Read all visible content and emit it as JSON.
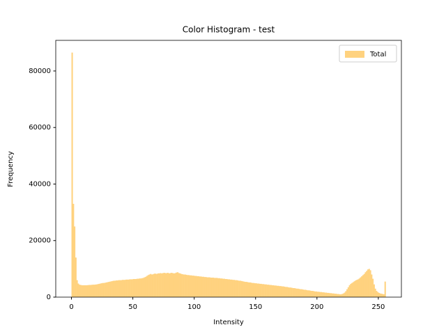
{
  "chart_data": {
    "type": "histogram",
    "title": "Color Histogram - test",
    "x_label": "Intensity",
    "y_label": "Frequency",
    "bins": [
      0,
      1,
      2,
      3,
      4,
      5,
      6,
      7,
      8,
      9,
      10,
      11,
      12,
      13,
      14,
      15,
      16,
      17,
      18,
      19,
      20,
      21,
      22,
      23,
      24,
      25,
      26,
      27,
      28,
      29,
      30,
      31,
      32,
      33,
      34,
      35,
      36,
      37,
      38,
      39,
      40,
      41,
      42,
      43,
      44,
      45,
      46,
      47,
      48,
      49,
      50,
      51,
      52,
      53,
      54,
      55,
      56,
      57,
      58,
      59,
      60,
      61,
      62,
      63,
      64,
      65,
      66,
      67,
      68,
      69,
      70,
      71,
      72,
      73,
      74,
      75,
      76,
      77,
      78,
      79,
      80,
      81,
      82,
      83,
      84,
      85,
      86,
      87,
      88,
      89,
      90,
      91,
      92,
      93,
      94,
      95,
      96,
      97,
      98,
      99,
      100,
      101,
      102,
      103,
      104,
      105,
      106,
      107,
      108,
      109,
      110,
      111,
      112,
      113,
      114,
      115,
      116,
      117,
      118,
      119,
      120,
      121,
      122,
      123,
      124,
      125,
      126,
      127,
      128,
      129,
      130,
      131,
      132,
      133,
      134,
      135,
      136,
      137,
      138,
      139,
      140,
      141,
      142,
      143,
      144,
      145,
      146,
      147,
      148,
      149,
      150,
      151,
      152,
      153,
      154,
      155,
      156,
      157,
      158,
      159,
      160,
      161,
      162,
      163,
      164,
      165,
      166,
      167,
      168,
      169,
      170,
      171,
      172,
      173,
      174,
      175,
      176,
      177,
      178,
      179,
      180,
      181,
      182,
      183,
      184,
      185,
      186,
      187,
      188,
      189,
      190,
      191,
      192,
      193,
      194,
      195,
      196,
      197,
      198,
      199,
      200,
      201,
      202,
      203,
      204,
      205,
      206,
      207,
      208,
      209,
      210,
      211,
      212,
      213,
      214,
      215,
      216,
      217,
      218,
      219,
      220,
      221,
      222,
      223,
      224,
      225,
      226,
      227,
      228,
      229,
      230,
      231,
      232,
      233,
      234,
      235,
      236,
      237,
      238,
      239,
      240,
      241,
      242,
      243,
      244,
      245,
      246,
      247,
      248,
      249,
      250,
      251,
      252,
      253,
      254,
      255,
      256
    ],
    "series": [
      {
        "name": "Total",
        "color": "#ffd27f",
        "values": [
          86500,
          33000,
          25000,
          14000,
          6000,
          4800,
          4400,
          4300,
          4200,
          4200,
          4200,
          4200,
          4200,
          4250,
          4300,
          4300,
          4350,
          4400,
          4400,
          4450,
          4500,
          4600,
          4700,
          4800,
          4900,
          5000,
          5000,
          5100,
          5200,
          5300,
          5400,
          5500,
          5600,
          5700,
          5800,
          5800,
          5900,
          5900,
          6000,
          6000,
          6000,
          6100,
          6100,
          6100,
          6200,
          6200,
          6200,
          6300,
          6300,
          6300,
          6400,
          6400,
          6400,
          6500,
          6500,
          6600,
          6600,
          6700,
          6800,
          7000,
          7200,
          7500,
          7800,
          8000,
          8200,
          8000,
          8100,
          8300,
          8300,
          8200,
          8400,
          8400,
          8500,
          8400,
          8500,
          8600,
          8500,
          8500,
          8600,
          8400,
          8500,
          8600,
          8500,
          8400,
          8500,
          8700,
          8800,
          8500,
          8400,
          8200,
          8100,
          8000,
          8000,
          7900,
          7800,
          7800,
          7700,
          7700,
          7600,
          7600,
          7500,
          7500,
          7400,
          7400,
          7300,
          7300,
          7200,
          7200,
          7100,
          7100,
          7000,
          7000,
          7000,
          6900,
          6900,
          6900,
          6800,
          6800,
          6800,
          6700,
          6700,
          6600,
          6600,
          6500,
          6500,
          6400,
          6400,
          6300,
          6300,
          6200,
          6200,
          6100,
          6100,
          6000,
          6000,
          5900,
          5800,
          5800,
          5700,
          5600,
          5500,
          5400,
          5400,
          5300,
          5200,
          5200,
          5100,
          5000,
          5000,
          4900,
          4900,
          4800,
          4800,
          4700,
          4700,
          4600,
          4600,
          4500,
          4500,
          4400,
          4400,
          4300,
          4300,
          4200,
          4200,
          4100,
          4100,
          4000,
          4000,
          3900,
          3900,
          3800,
          3800,
          3700,
          3600,
          3600,
          3500,
          3400,
          3400,
          3300,
          3200,
          3200,
          3100,
          3000,
          3000,
          2900,
          2800,
          2800,
          2700,
          2600,
          2600,
          2500,
          2400,
          2400,
          2300,
          2200,
          2200,
          2100,
          2000,
          2000,
          1900,
          1900,
          1800,
          1800,
          1700,
          1700,
          1600,
          1600,
          1500,
          1500,
          1400,
          1400,
          1300,
          1300,
          1200,
          1200,
          1100,
          1100,
          1000,
          1000,
          1100,
          1300,
          1600,
          2100,
          2800,
          3500,
          4200,
          4700,
          5000,
          5300,
          5600,
          5900,
          6100,
          6300,
          6600,
          7000,
          7400,
          7800,
          8200,
          8800,
          9300,
          9800,
          10000,
          9500,
          8000,
          6500,
          4500,
          3000,
          2200,
          1800,
          1500,
          1300,
          1200,
          1100,
          1000,
          5500
        ]
      }
    ],
    "xlim": [
      -12.8,
      268.8
    ],
    "ylim": [
      0,
      90825
    ],
    "xticks": [
      0,
      50,
      100,
      150,
      200,
      250
    ],
    "yticks": [
      0,
      20000,
      40000,
      60000,
      80000
    ],
    "legend": "upper right"
  }
}
